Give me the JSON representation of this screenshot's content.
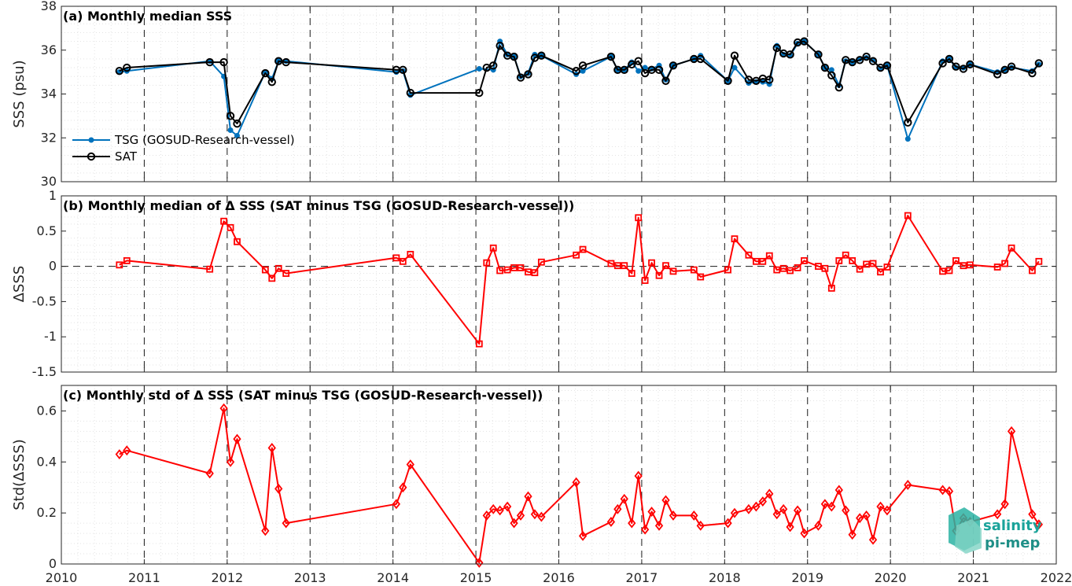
{
  "colors": {
    "tsg": "#0072BD",
    "sat": "#000000",
    "delta": "#FF0000",
    "axis": "#262626",
    "grid": "#d9d9d9",
    "logo_text": "#1aa39a"
  },
  "x_ticks": [
    "2010",
    "2011",
    "2012",
    "2013",
    "2014",
    "2015",
    "2016",
    "2017",
    "2018",
    "2019",
    "2020",
    "2021",
    "2022"
  ],
  "logo": {
    "line1": "salinity",
    "line2": "pi-mep"
  },
  "chart_data": [
    {
      "type": "line",
      "title": "(a) Monthly median SSS",
      "xlabel": "",
      "ylabel": "SSS (psu)",
      "xlim": [
        2010,
        2022
      ],
      "ylim": [
        30,
        38
      ],
      "y_ticks": [
        "30",
        "32",
        "34",
        "36",
        "38"
      ],
      "grid": true,
      "legend_position": "bottom-left",
      "series": [
        {
          "name": "TSG (GOSUD-Research-vessel)",
          "color": "#0072BD",
          "marker": "dot",
          "x": [
            2010.7,
            2010.79,
            2011.79,
            2011.96,
            2012.04,
            2012.12,
            2012.46,
            2012.54,
            2012.62,
            2012.71,
            2014.04,
            2014.12,
            2014.21,
            2015.04,
            2015.21,
            2015.29,
            2015.38,
            2015.46,
            2015.54,
            2015.63,
            2015.71,
            2015.79,
            2016.21,
            2016.29,
            2016.63,
            2016.71,
            2016.79,
            2016.88,
            2016.96,
            2017.04,
            2017.12,
            2017.21,
            2017.29,
            2017.38,
            2017.63,
            2017.71,
            2018.04,
            2018.12,
            2018.29,
            2018.38,
            2018.46,
            2018.54,
            2018.63,
            2018.71,
            2018.79,
            2018.88,
            2018.96,
            2019.13,
            2019.21,
            2019.29,
            2019.38,
            2019.46,
            2019.54,
            2019.63,
            2019.71,
            2019.79,
            2019.88,
            2019.96,
            2020.21,
            2020.63,
            2020.71,
            2020.79,
            2020.88,
            2020.96,
            2021.29,
            2021.38,
            2021.46,
            2021.71,
            2021.79
          ],
          "y": [
            35.0,
            35.05,
            35.5,
            34.8,
            32.35,
            32.1,
            35.0,
            34.7,
            35.5,
            35.5,
            35.0,
            35.05,
            33.95,
            35.15,
            35.1,
            36.4,
            35.8,
            35.7,
            34.8,
            34.95,
            35.8,
            35.75,
            34.9,
            35.05,
            35.7,
            35.1,
            35.1,
            35.45,
            35.05,
            35.2,
            35.15,
            35.3,
            34.65,
            35.3,
            35.6,
            35.75,
            34.6,
            35.2,
            34.5,
            34.55,
            34.55,
            34.45,
            36.2,
            35.8,
            35.75,
            36.3,
            36.4,
            35.8,
            35.2,
            35.1,
            34.4,
            35.5,
            35.45,
            35.6,
            35.65,
            35.55,
            35.15,
            35.3,
            31.95,
            35.5,
            35.6,
            35.2,
            35.2,
            35.35,
            35.0,
            35.1,
            35.2,
            35.05,
            35.35
          ]
        },
        {
          "name": "SAT",
          "color": "#000000",
          "marker": "circle",
          "x": [
            2010.7,
            2010.79,
            2011.79,
            2011.96,
            2012.04,
            2012.12,
            2012.46,
            2012.54,
            2012.62,
            2012.71,
            2014.04,
            2014.12,
            2014.21,
            2015.04,
            2015.13,
            2015.21,
            2015.29,
            2015.38,
            2015.46,
            2015.54,
            2015.63,
            2015.71,
            2015.79,
            2016.21,
            2016.29,
            2016.63,
            2016.71,
            2016.79,
            2016.88,
            2016.96,
            2017.04,
            2017.12,
            2017.21,
            2017.29,
            2017.38,
            2017.63,
            2017.71,
            2018.04,
            2018.12,
            2018.29,
            2018.38,
            2018.46,
            2018.54,
            2018.63,
            2018.71,
            2018.79,
            2018.88,
            2018.96,
            2019.13,
            2019.21,
            2019.29,
            2019.38,
            2019.46,
            2019.54,
            2019.63,
            2019.71,
            2019.79,
            2019.88,
            2019.96,
            2020.21,
            2020.63,
            2020.71,
            2020.79,
            2020.88,
            2020.96,
            2021.29,
            2021.38,
            2021.46,
            2021.71,
            2021.79
          ],
          "y": [
            35.05,
            35.2,
            35.45,
            35.45,
            33.0,
            32.65,
            34.95,
            34.55,
            35.5,
            35.45,
            35.1,
            35.1,
            34.05,
            34.05,
            35.2,
            35.3,
            36.2,
            35.75,
            35.7,
            34.75,
            34.9,
            35.65,
            35.75,
            35.05,
            35.3,
            35.7,
            35.1,
            35.1,
            35.35,
            35.5,
            34.95,
            35.1,
            35.1,
            34.6,
            35.3,
            35.6,
            35.6,
            34.6,
            35.75,
            34.65,
            34.6,
            34.7,
            34.65,
            36.1,
            35.85,
            35.8,
            36.35,
            36.4,
            35.8,
            35.2,
            34.85,
            34.3,
            35.55,
            35.45,
            35.55,
            35.7,
            35.5,
            35.2,
            35.3,
            32.7,
            35.4,
            35.6,
            35.25,
            35.15,
            35.35,
            34.9,
            35.1,
            35.25,
            34.95,
            35.4
          ]
        }
      ]
    },
    {
      "type": "line",
      "title": "(b) Monthly median of Δ SSS (SAT minus TSG (GOSUD-Research-vessel))",
      "xlabel": "",
      "ylabel": "ΔSSS",
      "xlim": [
        2010,
        2022
      ],
      "ylim": [
        -1.5,
        1
      ],
      "y_ticks": [
        "-1.5",
        "-1",
        "-0.5",
        "0",
        "0.5",
        "1"
      ],
      "reference_line": 0,
      "grid": true,
      "series": [
        {
          "color": "#FF0000",
          "marker": "square",
          "x": [
            2010.7,
            2010.79,
            2011.79,
            2011.96,
            2012.04,
            2012.12,
            2012.46,
            2012.54,
            2012.62,
            2012.71,
            2014.04,
            2014.12,
            2014.21,
            2015.04,
            2015.13,
            2015.21,
            2015.29,
            2015.38,
            2015.46,
            2015.54,
            2015.63,
            2015.71,
            2015.79,
            2016.21,
            2016.29,
            2016.63,
            2016.71,
            2016.79,
            2016.88,
            2016.96,
            2017.04,
            2017.12,
            2017.21,
            2017.29,
            2017.38,
            2017.63,
            2017.71,
            2018.04,
            2018.12,
            2018.29,
            2018.38,
            2018.46,
            2018.54,
            2018.63,
            2018.71,
            2018.79,
            2018.88,
            2018.96,
            2019.13,
            2019.21,
            2019.29,
            2019.38,
            2019.46,
            2019.54,
            2019.63,
            2019.71,
            2019.79,
            2019.88,
            2019.96,
            2020.21,
            2020.63,
            2020.71,
            2020.79,
            2020.88,
            2020.96,
            2021.29,
            2021.38,
            2021.46,
            2021.71,
            2021.79
          ],
          "y": [
            0.02,
            0.08,
            -0.04,
            0.64,
            0.55,
            0.35,
            -0.05,
            -0.17,
            -0.03,
            -0.1,
            0.12,
            0.07,
            0.17,
            -1.1,
            0.05,
            0.26,
            -0.06,
            -0.05,
            -0.02,
            -0.02,
            -0.08,
            -0.09,
            0.06,
            0.16,
            0.24,
            0.04,
            0.01,
            0.01,
            -0.1,
            0.69,
            -0.2,
            0.05,
            -0.13,
            0.01,
            -0.07,
            -0.05,
            -0.15,
            -0.05,
            0.39,
            0.16,
            0.07,
            0.07,
            0.15,
            -0.05,
            -0.03,
            -0.06,
            -0.02,
            0.08,
            0.0,
            -0.03,
            -0.31,
            0.08,
            0.16,
            0.08,
            -0.04,
            0.03,
            0.04,
            -0.08,
            -0.01,
            0.72,
            -0.07,
            -0.06,
            0.08,
            0.01,
            0.02,
            -0.01,
            0.04,
            0.26,
            -0.06,
            0.07
          ]
        }
      ]
    },
    {
      "type": "line",
      "title": "(c) Monthly std of Δ SSS (SAT minus TSG (GOSUD-Research-vessel))",
      "xlabel": "",
      "ylabel": "Std(ΔSSS)",
      "xlim": [
        2010,
        2022
      ],
      "ylim": [
        0,
        0.7
      ],
      "y_ticks": [
        "0",
        "0.2",
        "0.4",
        "0.6"
      ],
      "grid": true,
      "series": [
        {
          "color": "#FF0000",
          "marker": "diamond",
          "x": [
            2010.7,
            2010.79,
            2011.79,
            2011.96,
            2012.04,
            2012.12,
            2012.46,
            2012.54,
            2012.62,
            2012.71,
            2014.04,
            2014.12,
            2014.21,
            2015.04,
            2015.13,
            2015.21,
            2015.29,
            2015.38,
            2015.46,
            2015.54,
            2015.63,
            2015.71,
            2015.79,
            2016.21,
            2016.29,
            2016.63,
            2016.71,
            2016.79,
            2016.88,
            2016.96,
            2017.04,
            2017.12,
            2017.21,
            2017.29,
            2017.38,
            2017.63,
            2017.71,
            2018.04,
            2018.12,
            2018.29,
            2018.38,
            2018.46,
            2018.54,
            2018.63,
            2018.71,
            2018.79,
            2018.88,
            2018.96,
            2019.13,
            2019.21,
            2019.29,
            2019.38,
            2019.46,
            2019.54,
            2019.63,
            2019.71,
            2019.79,
            2019.88,
            2019.96,
            2020.21,
            2020.63,
            2020.71,
            2020.79,
            2020.88,
            2020.96,
            2021.29,
            2021.38,
            2021.46,
            2021.71,
            2021.79
          ],
          "y": [
            0.43,
            0.445,
            0.355,
            0.61,
            0.4,
            0.49,
            0.13,
            0.455,
            0.295,
            0.16,
            0.235,
            0.3,
            0.39,
            0.005,
            0.19,
            0.215,
            0.21,
            0.225,
            0.16,
            0.19,
            0.265,
            0.195,
            0.185,
            0.32,
            0.11,
            0.165,
            0.215,
            0.255,
            0.16,
            0.345,
            0.135,
            0.205,
            0.15,
            0.25,
            0.19,
            0.19,
            0.15,
            0.16,
            0.2,
            0.215,
            0.225,
            0.245,
            0.275,
            0.195,
            0.215,
            0.145,
            0.21,
            0.12,
            0.15,
            0.235,
            0.225,
            0.29,
            0.21,
            0.115,
            0.18,
            0.19,
            0.095,
            0.225,
            0.21,
            0.31,
            0.29,
            0.285,
            0.13,
            0.18,
            0.165,
            0.195,
            0.235,
            0.52,
            0.195,
            0.155
          ]
        }
      ]
    }
  ]
}
